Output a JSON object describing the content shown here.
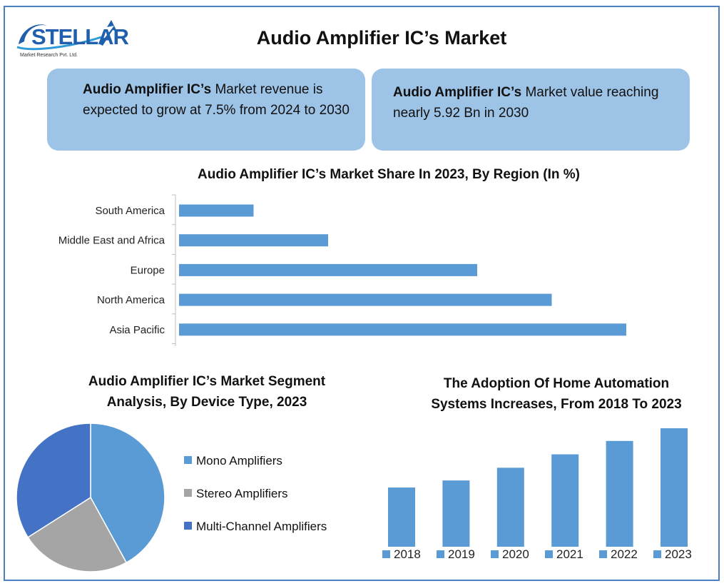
{
  "logo": {
    "word": "STELLAR",
    "subtitle": "Market Research Pvt. Ltd."
  },
  "title": "Audio Amplifier IC’s Market",
  "cards": [
    {
      "bold": "Audio Amplifier IC’s",
      "text": " Market revenue is expected to grow at 7.5% from 2024 to 2030"
    },
    {
      "bold": "Audio Amplifier IC’s",
      "text": " Market value reaching nearly 5.92 Bn in 2030"
    }
  ],
  "colors": {
    "bar": "#5b9bd5",
    "card": "#9dc3e6",
    "border": "#4a7fc1",
    "mono": "#5b9bd5",
    "stereo": "#a5a5a5",
    "multi": "#4472c4"
  },
  "chart_data": [
    {
      "type": "bar",
      "orientation": "horizontal",
      "title": "Audio Amplifier IC’s Market Share In 2023, By Region (In %)",
      "categories": [
        "South America",
        "Middle East and Africa",
        "Europe",
        "North America",
        "Asia Pacific"
      ],
      "values": [
        10,
        20,
        40,
        50,
        60
      ],
      "xlim": [
        0,
        60
      ],
      "grid": false
    },
    {
      "type": "pie",
      "title": "Audio Amplifier IC’s Market Segment Analysis, By Device Type, 2023",
      "categories": [
        "Mono Amplifiers",
        "Stereo Amplifiers",
        "Multi-Channel Amplifiers"
      ],
      "values": [
        42,
        24,
        34
      ],
      "legend": "right"
    },
    {
      "type": "bar",
      "orientation": "vertical",
      "title": "The Adoption Of Home Automation Systems Increases, From 2018 To 2023",
      "categories": [
        "2018",
        "2019",
        "2020",
        "2021",
        "2022",
        "2023"
      ],
      "values": [
        84,
        94,
        112,
        131,
        150,
        168
      ],
      "ylim": [
        0,
        170
      ],
      "legend": "bottom",
      "grid": false
    }
  ]
}
